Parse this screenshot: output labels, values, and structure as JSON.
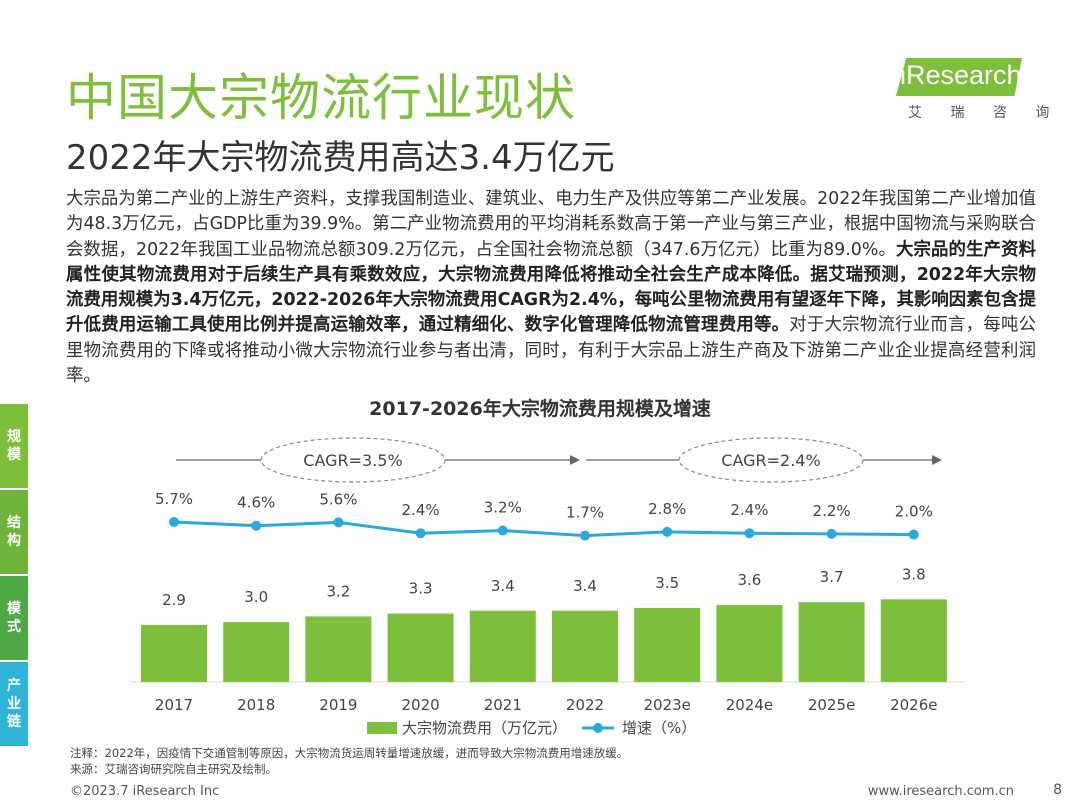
{
  "header": {
    "title": "中国大宗物流行业现状",
    "subtitle": "2022年大宗物流费用高达3.4万亿元"
  },
  "logo": {
    "brand": "iResearch",
    "sub": "艾 瑞 咨 询"
  },
  "paragraph": {
    "normal1": "大宗品为第二产业的上游生产资料，支撑我国制造业、建筑业、电力生产及供应等第二产业发展。2022年我国第二产业增加值为48.3万亿元，占GDP比重为39.9%。第二产业物流费用的平均消耗系数高于第一产业与第三产业，根据中国物流与采购联合会数据，2022年我国工业品物流总额309.2万亿元，占全国社会物流总额（347.6万亿元）比重为89.0%。",
    "bold": "大宗品的生产资料属性使其物流费用对于后续生产具有乘数效应，大宗物流费用降低将推动全社会生产成本降低。据艾瑞预测，2022年大宗物流费用规模为3.4万亿元，2022-2026年大宗物流费用CAGR为2.4%，每吨公里物流费用有望逐年下降，其影响因素包含提升低费用运输工具使用比例并提高运输效率，通过精细化、数字化管理降低物流管理费用等。",
    "normal2": "对于大宗物流行业而言，每吨公里物流费用的下降或将推动小微大宗物流行业参与者出清，同时，有利于大宗品上游生产商及下游第二产业企业提高经营利润率。"
  },
  "side_tabs": [
    {
      "label": "规模",
      "color": "#7dbf3b"
    },
    {
      "label": "结构",
      "color": "#6fb43a"
    },
    {
      "label": "模式",
      "color": "#4fa746"
    },
    {
      "label": "产业链",
      "color": "#2fb3d6"
    }
  ],
  "chart_data": {
    "type": "bar+line",
    "title": "2017-2026年大宗物流费用规模及增速",
    "categories": [
      "2017",
      "2018",
      "2019",
      "2020",
      "2021",
      "2022",
      "2023e",
      "2024e",
      "2025e",
      "2026e"
    ],
    "series": [
      {
        "name": "大宗物流费用（万亿元）",
        "type": "bar",
        "color": "#7dbf3b",
        "values": [
          2.9,
          3.0,
          3.2,
          3.3,
          3.4,
          3.4,
          3.5,
          3.6,
          3.7,
          3.8
        ],
        "labels": [
          "2.9",
          "3.0",
          "3.2",
          "3.3",
          "3.4",
          "3.4",
          "3.5",
          "3.6",
          "3.7",
          "3.8"
        ]
      },
      {
        "name": "增速（%）",
        "type": "line",
        "color": "#29a9dc",
        "values": [
          5.7,
          4.6,
          5.6,
          2.4,
          3.2,
          1.7,
          2.8,
          2.4,
          2.2,
          2.0
        ],
        "labels": [
          "5.7%",
          "4.6%",
          "5.6%",
          "2.4%",
          "3.2%",
          "1.7%",
          "2.8%",
          "2.4%",
          "2.2%",
          "2.0%"
        ]
      }
    ],
    "annotations": [
      {
        "text": "CAGR=3.5%",
        "span": [
          "2017",
          "2022"
        ]
      },
      {
        "text": "CAGR=2.4%",
        "span": [
          "2022",
          "2026e"
        ]
      }
    ]
  },
  "notes": {
    "note": "注释：2022年，因疫情下交通管制等原因，大宗物流货运周转量增速放缓，进而导致大宗物流费用增速放缓。",
    "source": "来源：艾瑞咨询研究院自主研究及绘制。"
  },
  "footer": {
    "copyright": "©2023.7 iResearch Inc",
    "website": "www.iresearch.com.cn",
    "page": "8"
  }
}
